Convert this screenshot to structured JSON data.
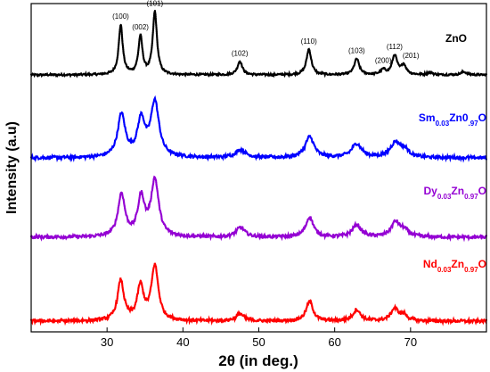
{
  "chart_data": {
    "type": "line",
    "xlabel": "2θ (in deg.)",
    "ylabel": "Intensity (a.u)",
    "xlim": [
      20,
      80
    ],
    "x_ticks": [
      30,
      40,
      50,
      60,
      70
    ],
    "y_ticks_shown": false,
    "grid": false,
    "legend": "inline labels at right",
    "series": [
      {
        "name": "ZnO",
        "label_parts": [
          {
            "text": "ZnO",
            "sub": false
          }
        ],
        "color": "#000000",
        "peaks": [
          {
            "x": 31.8,
            "h": 0.62,
            "w": 0.32
          },
          {
            "x": 34.4,
            "h": 0.47,
            "w": 0.32
          },
          {
            "x": 36.3,
            "h": 0.78,
            "w": 0.33
          },
          {
            "x": 47.5,
            "h": 0.17,
            "w": 0.38
          },
          {
            "x": 56.6,
            "h": 0.32,
            "w": 0.38
          },
          {
            "x": 62.9,
            "h": 0.2,
            "w": 0.4
          },
          {
            "x": 66.4,
            "h": 0.06,
            "w": 0.4
          },
          {
            "x": 67.9,
            "h": 0.24,
            "w": 0.4
          },
          {
            "x": 69.1,
            "h": 0.12,
            "w": 0.4
          },
          {
            "x": 72.6,
            "h": 0.03,
            "w": 0.4
          },
          {
            "x": 77.0,
            "h": 0.04,
            "w": 0.4
          }
        ]
      },
      {
        "name": "Sm0.03Zn0.97O",
        "label_parts": [
          {
            "text": "Sm",
            "sub": false
          },
          {
            "text": "0.03",
            "sub": true
          },
          {
            "text": "Zn0",
            "sub": false
          },
          {
            "text": ".97",
            "sub": true
          },
          {
            "text": "O",
            "sub": false
          }
        ],
        "color": "#0000ff",
        "peaks": [
          {
            "x": 31.9,
            "h": 0.53,
            "w": 0.6
          },
          {
            "x": 34.5,
            "h": 0.45,
            "w": 0.6
          },
          {
            "x": 36.3,
            "h": 0.68,
            "w": 0.65
          },
          {
            "x": 47.6,
            "h": 0.1,
            "w": 0.8
          },
          {
            "x": 56.7,
            "h": 0.26,
            "w": 0.7
          },
          {
            "x": 62.9,
            "h": 0.17,
            "w": 0.8
          },
          {
            "x": 68.0,
            "h": 0.18,
            "w": 0.8
          },
          {
            "x": 69.2,
            "h": 0.09,
            "w": 0.7
          }
        ]
      },
      {
        "name": "Dy0.03Zn0.97O",
        "label_parts": [
          {
            "text": "Dy",
            "sub": false
          },
          {
            "text": "0.03",
            "sub": true
          },
          {
            "text": "Zn",
            "sub": false
          },
          {
            "text": "0.97",
            "sub": true
          },
          {
            "text": "O",
            "sub": false
          }
        ],
        "color": "#9400d3",
        "peaks": [
          {
            "x": 31.9,
            "h": 0.53,
            "w": 0.55
          },
          {
            "x": 34.5,
            "h": 0.47,
            "w": 0.55
          },
          {
            "x": 36.3,
            "h": 0.7,
            "w": 0.6
          },
          {
            "x": 47.6,
            "h": 0.12,
            "w": 0.7
          },
          {
            "x": 56.7,
            "h": 0.25,
            "w": 0.6
          },
          {
            "x": 62.9,
            "h": 0.15,
            "w": 0.7
          },
          {
            "x": 68.0,
            "h": 0.18,
            "w": 0.7
          },
          {
            "x": 69.2,
            "h": 0.08,
            "w": 0.7
          }
        ]
      },
      {
        "name": "Nd0.03Zn0.97O",
        "label_parts": [
          {
            "text": "Nd",
            "sub": false
          },
          {
            "text": "0.03",
            "sub": true
          },
          {
            "text": "Zn",
            "sub": false
          },
          {
            "text": "0.97",
            "sub": true
          },
          {
            "text": "O",
            "sub": false
          }
        ],
        "color": "#ff0000",
        "peaks": [
          {
            "x": 31.8,
            "h": 0.5,
            "w": 0.5
          },
          {
            "x": 34.4,
            "h": 0.42,
            "w": 0.5
          },
          {
            "x": 36.3,
            "h": 0.68,
            "w": 0.55
          },
          {
            "x": 47.5,
            "h": 0.09,
            "w": 0.6
          },
          {
            "x": 56.7,
            "h": 0.24,
            "w": 0.55
          },
          {
            "x": 62.9,
            "h": 0.14,
            "w": 0.6
          },
          {
            "x": 67.9,
            "h": 0.15,
            "w": 0.6
          },
          {
            "x": 69.1,
            "h": 0.07,
            "w": 0.6
          }
        ]
      }
    ],
    "annotations": [
      {
        "label": "(100)",
        "x": 31.8
      },
      {
        "label": "(002)",
        "x": 34.4
      },
      {
        "label": "(101)",
        "x": 36.3
      },
      {
        "label": "(102)",
        "x": 47.5
      },
      {
        "label": "(110)",
        "x": 56.6
      },
      {
        "label": "(103)",
        "x": 62.9
      },
      {
        "label": "(200)",
        "x": 66.4
      },
      {
        "label": "(112)",
        "x": 67.9
      },
      {
        "label": "(201)",
        "x": 69.1
      }
    ]
  }
}
